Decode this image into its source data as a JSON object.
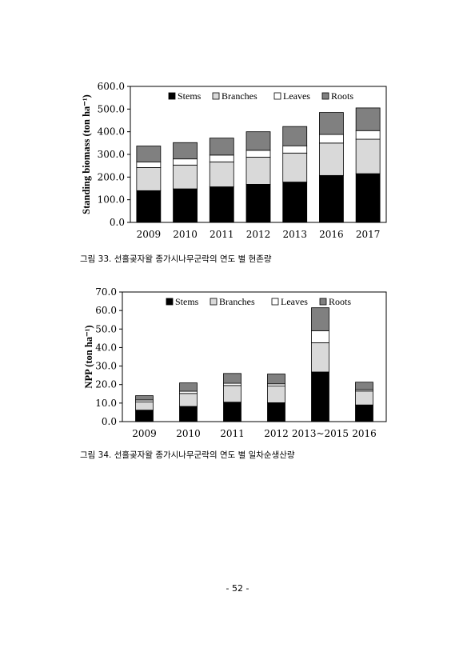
{
  "page": {
    "page_number": "- 52 -",
    "captions": [
      "그림 33. 선흘곶자왈 종가시나무군락의 연도 별 현존량",
      "그림 34. 선흘곶자왈 종가시나무군락의 연도 별 일차순생산량"
    ]
  },
  "chart_data": [
    {
      "type": "bar",
      "stacked": true,
      "title": "",
      "xlabel": "",
      "ylabel": "Standing biomass (ton ha⁻¹)",
      "ylim": [
        0,
        600
      ],
      "ytick_step": 100,
      "ytick_labels": [
        "0.0",
        "100.0",
        "200.0",
        "300.0",
        "400.0",
        "500.0",
        "600.0"
      ],
      "categories": [
        "2009",
        "2010",
        "2011",
        "2012",
        "2013",
        "2016",
        "2017"
      ],
      "series": [
        {
          "name": "Stems",
          "color": "#000000",
          "values": [
            140,
            148,
            157,
            168,
            178,
            207,
            215
          ]
        },
        {
          "name": "Branches",
          "color": "#d9d9d9",
          "values": [
            102,
            105,
            110,
            120,
            128,
            143,
            152
          ]
        },
        {
          "name": "Leaves",
          "color": "#ffffff",
          "values": [
            25,
            27,
            30,
            30,
            32,
            38,
            38
          ]
        },
        {
          "name": "Roots",
          "color": "#808080",
          "values": [
            70,
            72,
            75,
            82,
            85,
            97,
            100
          ]
        }
      ],
      "legend": "top-inside",
      "grid": false
    },
    {
      "type": "bar",
      "stacked": true,
      "title": "",
      "xlabel": "",
      "ylabel": "NPP (ton ha⁻¹)",
      "ylim": [
        0,
        70
      ],
      "ytick_step": 10,
      "ytick_labels": [
        "0.0",
        "10.0",
        "20.0",
        "30.0",
        "40.0",
        "50.0",
        "60.0",
        "70.0"
      ],
      "categories": [
        "2009",
        "2010",
        "2011",
        "2012",
        "2013~2015",
        "2016"
      ],
      "series": [
        {
          "name": "Stems",
          "color": "#000000",
          "values": [
            6.2,
            8.2,
            10.5,
            10.2,
            26.8,
            9.0
          ]
        },
        {
          "name": "Branches",
          "color": "#d9d9d9",
          "values": [
            4.5,
            7.0,
            9.0,
            9.0,
            15.8,
            7.5
          ]
        },
        {
          "name": "Leaves",
          "color": "#ffffff",
          "values": [
            1.0,
            1.2,
            1.2,
            1.2,
            6.5,
            0.8
          ]
        },
        {
          "name": "Roots",
          "color": "#808080",
          "values": [
            2.3,
            4.5,
            5.3,
            5.3,
            12.4,
            4.0
          ]
        }
      ],
      "legend": "top-inside",
      "grid": false
    }
  ]
}
